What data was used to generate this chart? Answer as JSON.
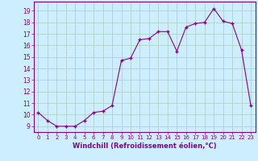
{
  "x": [
    0,
    1,
    2,
    3,
    4,
    5,
    6,
    7,
    8,
    9,
    10,
    11,
    12,
    13,
    14,
    15,
    16,
    17,
    18,
    19,
    20,
    21,
    22,
    23
  ],
  "y": [
    10.2,
    9.5,
    9.0,
    9.0,
    9.0,
    9.5,
    10.2,
    10.3,
    10.8,
    14.7,
    14.9,
    16.5,
    16.6,
    17.2,
    17.2,
    15.5,
    17.6,
    17.9,
    18.0,
    19.2,
    18.1,
    17.9,
    15.6,
    10.8
  ],
  "line_color": "#880088",
  "marker": "+",
  "marker_size": 3,
  "background_color": "#cceeff",
  "grid_color": "#aaccbb",
  "xlabel": "Windchill (Refroidissement éolien,°C)",
  "xlabel_color": "#880088",
  "ylabel_ticks": [
    9,
    10,
    11,
    12,
    13,
    14,
    15,
    16,
    17,
    18,
    19
  ],
  "ylim": [
    8.5,
    19.8
  ],
  "xlim": [
    -0.5,
    23.5
  ],
  "tick_color": "#880088",
  "tick_label_color": "#880088",
  "xtick_fontsize": 5.0,
  "ytick_fontsize": 5.5,
  "xlabel_fontsize": 6.0
}
